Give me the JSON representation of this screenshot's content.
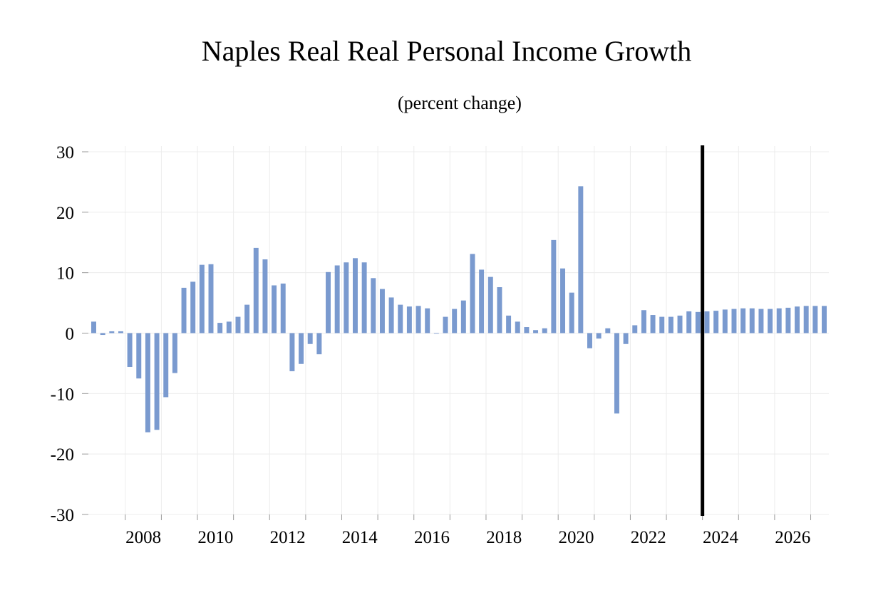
{
  "chart_data": {
    "type": "bar",
    "title": "Naples Real Real Personal Income Growth",
    "subtitle": "(percent change)",
    "xlabel": "",
    "ylabel": "",
    "ylim": [
      -30,
      30
    ],
    "yticks": [
      30,
      20,
      10,
      0,
      -10,
      -20,
      -30
    ],
    "ytick_labels": [
      "30",
      "20",
      "10",
      "0",
      "-10",
      "-20",
      "-30"
    ],
    "xtick_labels": [
      "2008",
      "2010",
      "2012",
      "2014",
      "2016",
      "2018",
      "2020",
      "2022",
      "2024",
      "2026"
    ],
    "grid": true,
    "bar_color": "#7a9acf",
    "forecast_line_color": "#000000",
    "forecast_start": "2024 Q1",
    "categories": [
      "2007 Q1",
      "2007 Q2",
      "2007 Q3",
      "2007 Q4",
      "2008 Q1",
      "2008 Q2",
      "2008 Q3",
      "2008 Q4",
      "2009 Q1",
      "2009 Q2",
      "2009 Q3",
      "2009 Q4",
      "2010 Q1",
      "2010 Q2",
      "2010 Q3",
      "2010 Q4",
      "2011 Q1",
      "2011 Q2",
      "2011 Q3",
      "2011 Q4",
      "2012 Q1",
      "2012 Q2",
      "2012 Q3",
      "2012 Q4",
      "2013 Q1",
      "2013 Q2",
      "2013 Q3",
      "2013 Q4",
      "2014 Q1",
      "2014 Q2",
      "2014 Q3",
      "2014 Q4",
      "2015 Q1",
      "2015 Q2",
      "2015 Q3",
      "2015 Q4",
      "2016 Q1",
      "2016 Q2",
      "2016 Q3",
      "2016 Q4",
      "2017 Q1",
      "2017 Q2",
      "2017 Q3",
      "2017 Q4",
      "2018 Q1",
      "2018 Q2",
      "2018 Q3",
      "2018 Q4",
      "2019 Q1",
      "2019 Q2",
      "2019 Q3",
      "2019 Q4",
      "2020 Q1",
      "2020 Q2",
      "2020 Q3",
      "2020 Q4",
      "2021 Q1",
      "2021 Q2",
      "2021 Q3",
      "2021 Q4",
      "2022 Q1",
      "2022 Q2",
      "2022 Q3",
      "2022 Q4",
      "2023 Q1",
      "2023 Q2",
      "2023 Q3",
      "2023 Q4",
      "2024 Q1",
      "2024 Q2",
      "2024 Q3",
      "2024 Q4",
      "2025 Q1",
      "2025 Q2",
      "2025 Q3",
      "2025 Q4",
      "2026 Q1",
      "2026 Q2",
      "2026 Q3",
      "2026 Q4",
      "2027 Q1",
      "2027 Q2"
    ],
    "values": [
      1.9,
      -0.3,
      0.3,
      0.3,
      -5.6,
      -7.5,
      -16.4,
      -16.0,
      -10.6,
      -6.6,
      7.5,
      8.5,
      11.3,
      11.4,
      1.7,
      1.9,
      2.7,
      4.7,
      14.1,
      12.2,
      7.9,
      8.2,
      -6.3,
      -5.1,
      -1.8,
      -3.5,
      10.1,
      11.2,
      11.7,
      12.4,
      11.7,
      9.1,
      7.3,
      5.9,
      4.7,
      4.4,
      4.5,
      4.1,
      0.0,
      2.7,
      4.0,
      5.4,
      13.1,
      10.5,
      9.3,
      7.6,
      2.9,
      1.9,
      1.0,
      0.5,
      0.8,
      15.4,
      10.7,
      6.7,
      24.3,
      -2.5,
      -0.9,
      0.8,
      -13.3,
      -1.8,
      1.3,
      3.8,
      3.0,
      2.7,
      2.7,
      2.9,
      3.6,
      3.5,
      3.6,
      3.7,
      3.9,
      4.0,
      4.1,
      4.1,
      4.0,
      4.0,
      4.1,
      4.2,
      4.4,
      4.5,
      4.5,
      4.5
    ]
  }
}
